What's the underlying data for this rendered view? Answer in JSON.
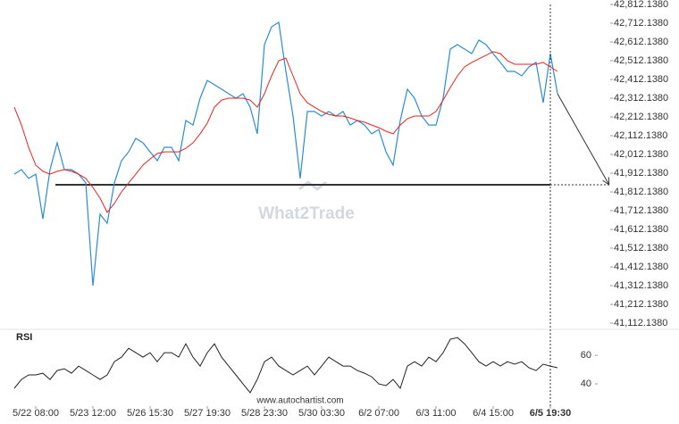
{
  "chart_data": [
    {
      "type": "line",
      "watermark": "What2Trade",
      "xlim": [
        -0.5,
        10.05
      ],
      "ylim": [
        41083.57,
        42835.95
      ],
      "yticks": [
        {
          "value": 42812.138,
          "label": "42,812.1380"
        },
        {
          "value": 42712.138,
          "label": "42,712.1380"
        },
        {
          "value": 42612.138,
          "label": "42,612.1380"
        },
        {
          "value": 42512.138,
          "label": "42,512.1380"
        },
        {
          "value": 42412.138,
          "label": "42,412.1380"
        },
        {
          "value": 42312.138,
          "label": "42,312.1380"
        },
        {
          "value": 42212.138,
          "label": "42,212.1380"
        },
        {
          "value": 42112.138,
          "label": "42,112.1380"
        },
        {
          "value": 42012.138,
          "label": "42,012.1380"
        },
        {
          "value": 41912.138,
          "label": "41,912.1380"
        },
        {
          "value": 41812.138,
          "label": "41,812.1380"
        },
        {
          "value": 41712.138,
          "label": "41,712.1380"
        },
        {
          "value": 41612.138,
          "label": "41,612.1380"
        },
        {
          "value": 41512.138,
          "label": "41,512.1380"
        },
        {
          "value": 41412.138,
          "label": "41,412.1380"
        },
        {
          "value": 41312.138,
          "label": "41,312.1380"
        },
        {
          "value": 41212.138,
          "label": "41,212.1380"
        },
        {
          "value": 41112.138,
          "label": "41,112.1380"
        }
      ],
      "level": 41850,
      "level_color": "#333333",
      "x": [
        -0.375,
        -0.25,
        -0.125,
        0,
        0.125,
        0.25,
        0.375,
        0.5,
        0.625,
        0.75,
        0.875,
        1,
        1.125,
        1.25,
        1.375,
        1.5,
        1.625,
        1.75,
        1.875,
        2,
        2.125,
        2.25,
        2.375,
        2.5,
        2.625,
        2.75,
        2.875,
        3,
        3.125,
        3.25,
        3.375,
        3.5,
        3.625,
        3.75,
        3.875,
        4,
        4.125,
        4.25,
        4.375,
        4.5,
        4.625,
        4.75,
        4.875,
        5,
        5.125,
        5.25,
        5.375,
        5.5,
        5.625,
        5.75,
        5.875,
        6,
        6.125,
        6.25,
        6.375,
        6.5,
        6.625,
        6.75,
        6.875,
        7,
        7.125,
        7.25,
        7.375,
        7.5,
        7.625,
        7.75,
        7.875,
        8,
        8.125,
        8.25,
        8.375,
        8.5,
        8.625,
        8.75,
        8.875,
        9,
        9.125
      ],
      "series": [
        {
          "color": "#2a8dd4",
          "width": 1.2,
          "values": [
            41907,
            41931,
            41884,
            41907,
            41669,
            41931,
            42074,
            41931,
            41931,
            41907,
            41860,
            41312,
            41693,
            41645,
            41860,
            41979,
            42026,
            42098,
            42074,
            42026,
            41979,
            42050,
            42050,
            41979,
            42193,
            42169,
            42312,
            42407,
            42384,
            42360,
            42336,
            42312,
            42336,
            42264,
            42122,
            42598,
            42693,
            42717,
            42455,
            42217,
            41884,
            42241,
            42241,
            42217,
            42241,
            42217,
            42241,
            42169,
            42193,
            42169,
            42122,
            42145,
            42026,
            41955,
            42193,
            42360,
            42312,
            42217,
            42169,
            42169,
            42312,
            42574,
            42598,
            42574,
            42550,
            42622,
            42598,
            42550,
            42503,
            42455,
            42455,
            42431,
            42479,
            42503,
            42288,
            42550,
            42336
          ]
        },
        {
          "color": "#e8231e",
          "width": 1,
          "values": [
            42264,
            42169,
            42050,
            41955,
            41922,
            41907,
            41922,
            41931,
            41922,
            41907,
            41884,
            41836,
            41779,
            41703,
            41750,
            41812,
            41860,
            41907,
            41955,
            41988,
            42017,
            42026,
            42026,
            42026,
            42045,
            42074,
            42122,
            42179,
            42264,
            42302,
            42312,
            42312,
            42312,
            42302,
            42264,
            42336,
            42431,
            42512,
            42526,
            42431,
            42336,
            42288,
            42264,
            42241,
            42226,
            42217,
            42217,
            42207,
            42193,
            42184,
            42169,
            42155,
            42136,
            42122,
            42169,
            42203,
            42217,
            42217,
            42217,
            42241,
            42302,
            42369,
            42431,
            42479,
            42503,
            42522,
            42541,
            42560,
            42550,
            42512,
            42493,
            42493,
            42493,
            42493,
            42503,
            42479,
            42455
          ]
        }
      ]
    },
    {
      "type": "line",
      "title": "RSI",
      "source": "www.autochartist.com",
      "xlim": [
        -0.5,
        10.05
      ],
      "ylim": [
        25,
        77
      ],
      "yticks": [
        40,
        60
      ],
      "xticks": [
        {
          "value": 0,
          "label": "5/22 08:00"
        },
        {
          "value": 1,
          "label": "5/23 12:00"
        },
        {
          "value": 2,
          "label": "5/26 15:30"
        },
        {
          "value": 3,
          "label": "5/27 19:30"
        },
        {
          "value": 4,
          "label": "5/28 23:30"
        },
        {
          "value": 5,
          "label": "5/30 03:30"
        },
        {
          "value": 6,
          "label": "6/2 07:00"
        },
        {
          "value": 7,
          "label": "6/3 11:00"
        },
        {
          "value": 8,
          "label": "6/4 15:00"
        },
        {
          "value": 9,
          "label": "6/5 19:30"
        }
      ],
      "x": [
        -0.375,
        -0.25,
        -0.125,
        0,
        0.125,
        0.25,
        0.375,
        0.5,
        0.625,
        0.75,
        0.875,
        1,
        1.125,
        1.25,
        1.375,
        1.5,
        1.625,
        1.75,
        1.875,
        2,
        2.125,
        2.25,
        2.375,
        2.5,
        2.625,
        2.75,
        2.875,
        3,
        3.125,
        3.25,
        3.375,
        3.5,
        3.625,
        3.75,
        3.875,
        4,
        4.125,
        4.25,
        4.375,
        4.5,
        4.625,
        4.75,
        4.875,
        5,
        5.125,
        5.25,
        5.375,
        5.5,
        5.625,
        5.75,
        5.875,
        6,
        6.125,
        6.25,
        6.375,
        6.5,
        6.625,
        6.75,
        6.875,
        7,
        7.125,
        7.25,
        7.375,
        7.5,
        7.625,
        7.75,
        7.875,
        8,
        8.125,
        8.25,
        8.375,
        8.5,
        8.625,
        8.75,
        8.875,
        9,
        9.125
      ],
      "series": [
        {
          "color": "#222222",
          "width": 1,
          "values": [
            36.9,
            43.1,
            46.3,
            46.3,
            47.5,
            43.1,
            49.4,
            50.6,
            47.5,
            52.5,
            49.4,
            46.3,
            43.1,
            46.3,
            55.6,
            58.8,
            65,
            61.9,
            58.8,
            61.9,
            55.6,
            61.9,
            61.9,
            58.8,
            68.1,
            58.8,
            52.5,
            61.9,
            68.1,
            58.8,
            52.5,
            46.3,
            40,
            33.8,
            43.1,
            55.6,
            58.8,
            52.5,
            49.4,
            46.3,
            49.4,
            52.5,
            46.3,
            52.5,
            58.8,
            55.6,
            52.5,
            52.5,
            49.4,
            47.5,
            45,
            40,
            38.8,
            43.1,
            36.9,
            52.5,
            55.6,
            52.5,
            58.8,
            55.6,
            61.9,
            71.3,
            72.5,
            68.1,
            61.9,
            55.6,
            52.5,
            55.6,
            52.5,
            55.6,
            53.8,
            55.6,
            51.3,
            49.4,
            53.8,
            52.5,
            51.3
          ]
        }
      ]
    }
  ]
}
